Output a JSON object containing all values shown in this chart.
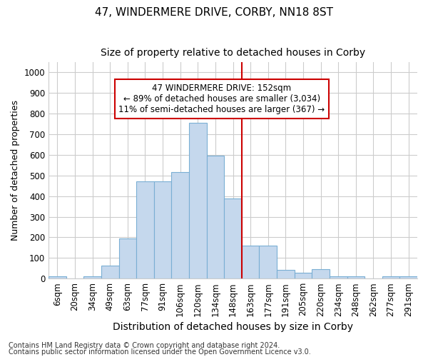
{
  "title": "47, WINDERMERE DRIVE, CORBY, NN18 8ST",
  "subtitle": "Size of property relative to detached houses in Corby",
  "xlabel": "Distribution of detached houses by size in Corby",
  "ylabel": "Number of detached properties",
  "footer1": "Contains HM Land Registry data © Crown copyright and database right 2024.",
  "footer2": "Contains public sector information licensed under the Open Government Licence v3.0.",
  "annotation_line1": "47 WINDERMERE DRIVE: 152sqm",
  "annotation_line2": "← 89% of detached houses are smaller (3,034)",
  "annotation_line3": "11% of semi-detached houses are larger (367) →",
  "bar_labels": [
    "6sqm",
    "20sqm",
    "34sqm",
    "49sqm",
    "63sqm",
    "77sqm",
    "91sqm",
    "106sqm",
    "120sqm",
    "134sqm",
    "148sqm",
    "163sqm",
    "177sqm",
    "191sqm",
    "205sqm",
    "220sqm",
    "234sqm",
    "248sqm",
    "262sqm",
    "277sqm",
    "291sqm"
  ],
  "bar_values": [
    12,
    0,
    12,
    62,
    195,
    470,
    470,
    518,
    755,
    597,
    390,
    160,
    160,
    42,
    28,
    44,
    10,
    10,
    0,
    10,
    10
  ],
  "bar_color": "#c5d8ed",
  "bar_edgecolor": "#7aafd4",
  "vline_color": "#cc0000",
  "annotation_box_edgecolor": "#cc0000",
  "background_color": "#ffffff",
  "grid_color": "#cccccc",
  "ylim": [
    0,
    1050
  ],
  "yticks": [
    0,
    100,
    200,
    300,
    400,
    500,
    600,
    700,
    800,
    900,
    1000
  ],
  "title_fontsize": 11,
  "subtitle_fontsize": 10,
  "ylabel_fontsize": 9,
  "xlabel_fontsize": 10,
  "tick_fontsize": 8.5,
  "annotation_fontsize": 8.5,
  "footer_fontsize": 7
}
